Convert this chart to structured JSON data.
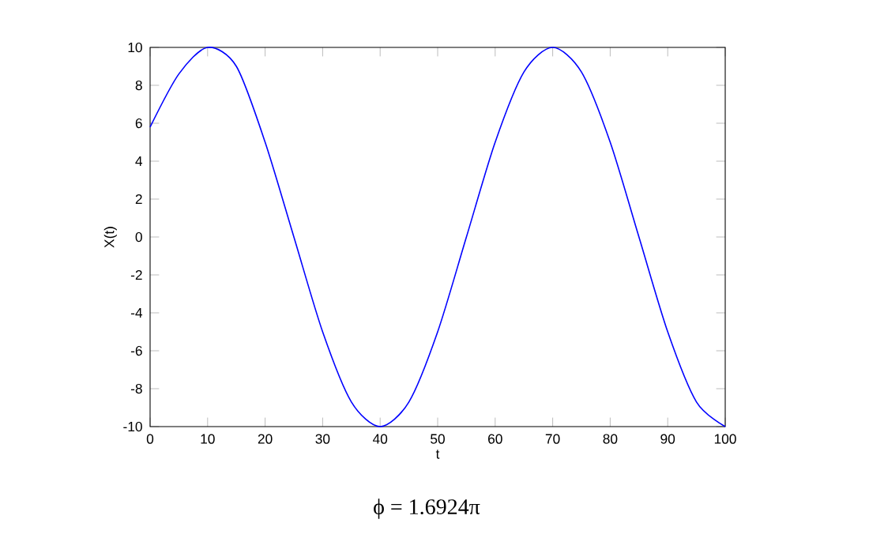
{
  "chart_data": {
    "type": "line",
    "xlabel": "t",
    "ylabel": "X(t)",
    "annotations": [
      "ϕ = 1.6924π"
    ],
    "x": [
      0,
      5,
      10,
      15,
      20,
      25,
      30,
      35,
      40,
      45,
      50,
      55,
      60,
      65,
      70,
      75,
      80,
      85,
      90,
      95,
      100
    ],
    "series": [
      {
        "color": "#0000ff",
        "values": [
          5.8,
          8.6,
          10,
          9,
          5,
          0,
          -5,
          -8.7,
          -10,
          -8.7,
          -5,
          0,
          5,
          8.7,
          10,
          8.7,
          5,
          0,
          -5,
          -8.7,
          -10
        ]
      }
    ],
    "xlim": [
      0,
      100
    ],
    "ylim": [
      -10,
      10
    ],
    "xticks": [
      0,
      10,
      20,
      30,
      40,
      50,
      60,
      70,
      80,
      90,
      100
    ],
    "yticks": [
      -10,
      -8,
      -6,
      -4,
      -2,
      0,
      2,
      4,
      6,
      8,
      10
    ],
    "grid": false,
    "marker": "none",
    "line_style": "solid"
  }
}
